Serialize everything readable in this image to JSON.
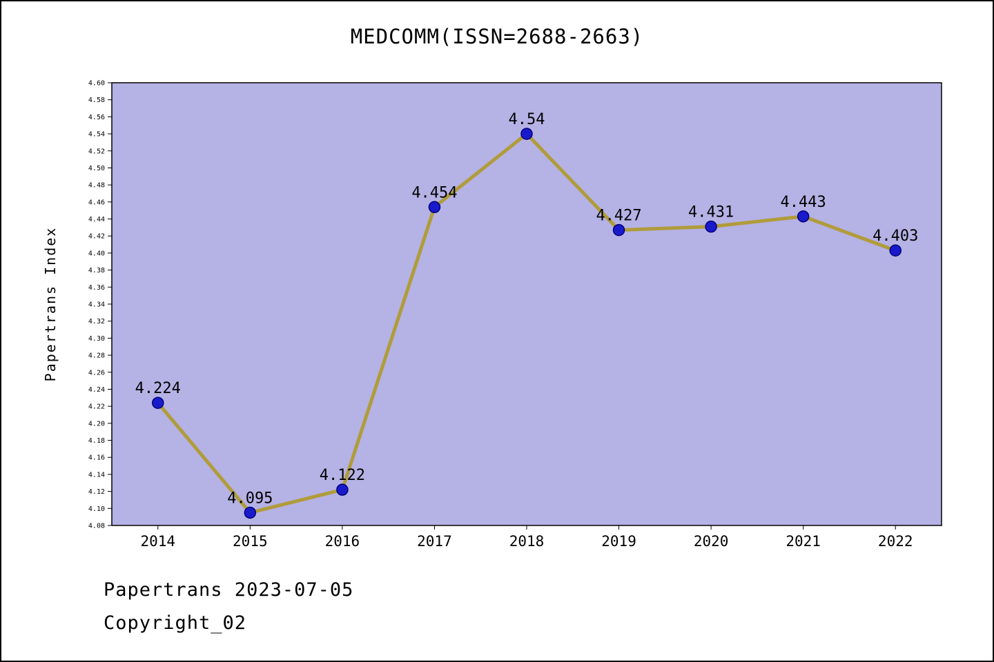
{
  "title": "MEDCOMM(ISSN=2688-2663)",
  "footer": {
    "line1": "Papertrans 2023-07-05",
    "line2": "Copyright_02"
  },
  "chart_data": {
    "type": "line",
    "title": "MEDCOMM(ISSN=2688-2663)",
    "categories": [
      "2014",
      "2015",
      "2016",
      "2017",
      "2018",
      "2019",
      "2020",
      "2021",
      "2022"
    ],
    "values": [
      4.224,
      4.095,
      4.122,
      4.454,
      4.54,
      4.427,
      4.431,
      4.443,
      4.403
    ],
    "point_labels": [
      "4.224",
      "4.095",
      "4.122",
      "4.454",
      "4.54",
      "4.427",
      "4.431",
      "4.443",
      "4.403"
    ],
    "xlabel": "",
    "ylabel": "Papertrans Index",
    "ylim": [
      4.08,
      4.6
    ],
    "ytick_step": 0.02,
    "grid": false,
    "legend": null,
    "colors": {
      "plot_bg": "#b5b2e5",
      "line": "#b09c3a",
      "marker_fill": "#1a1acd",
      "marker_edge": "#00007a",
      "axis": "#000000"
    }
  }
}
